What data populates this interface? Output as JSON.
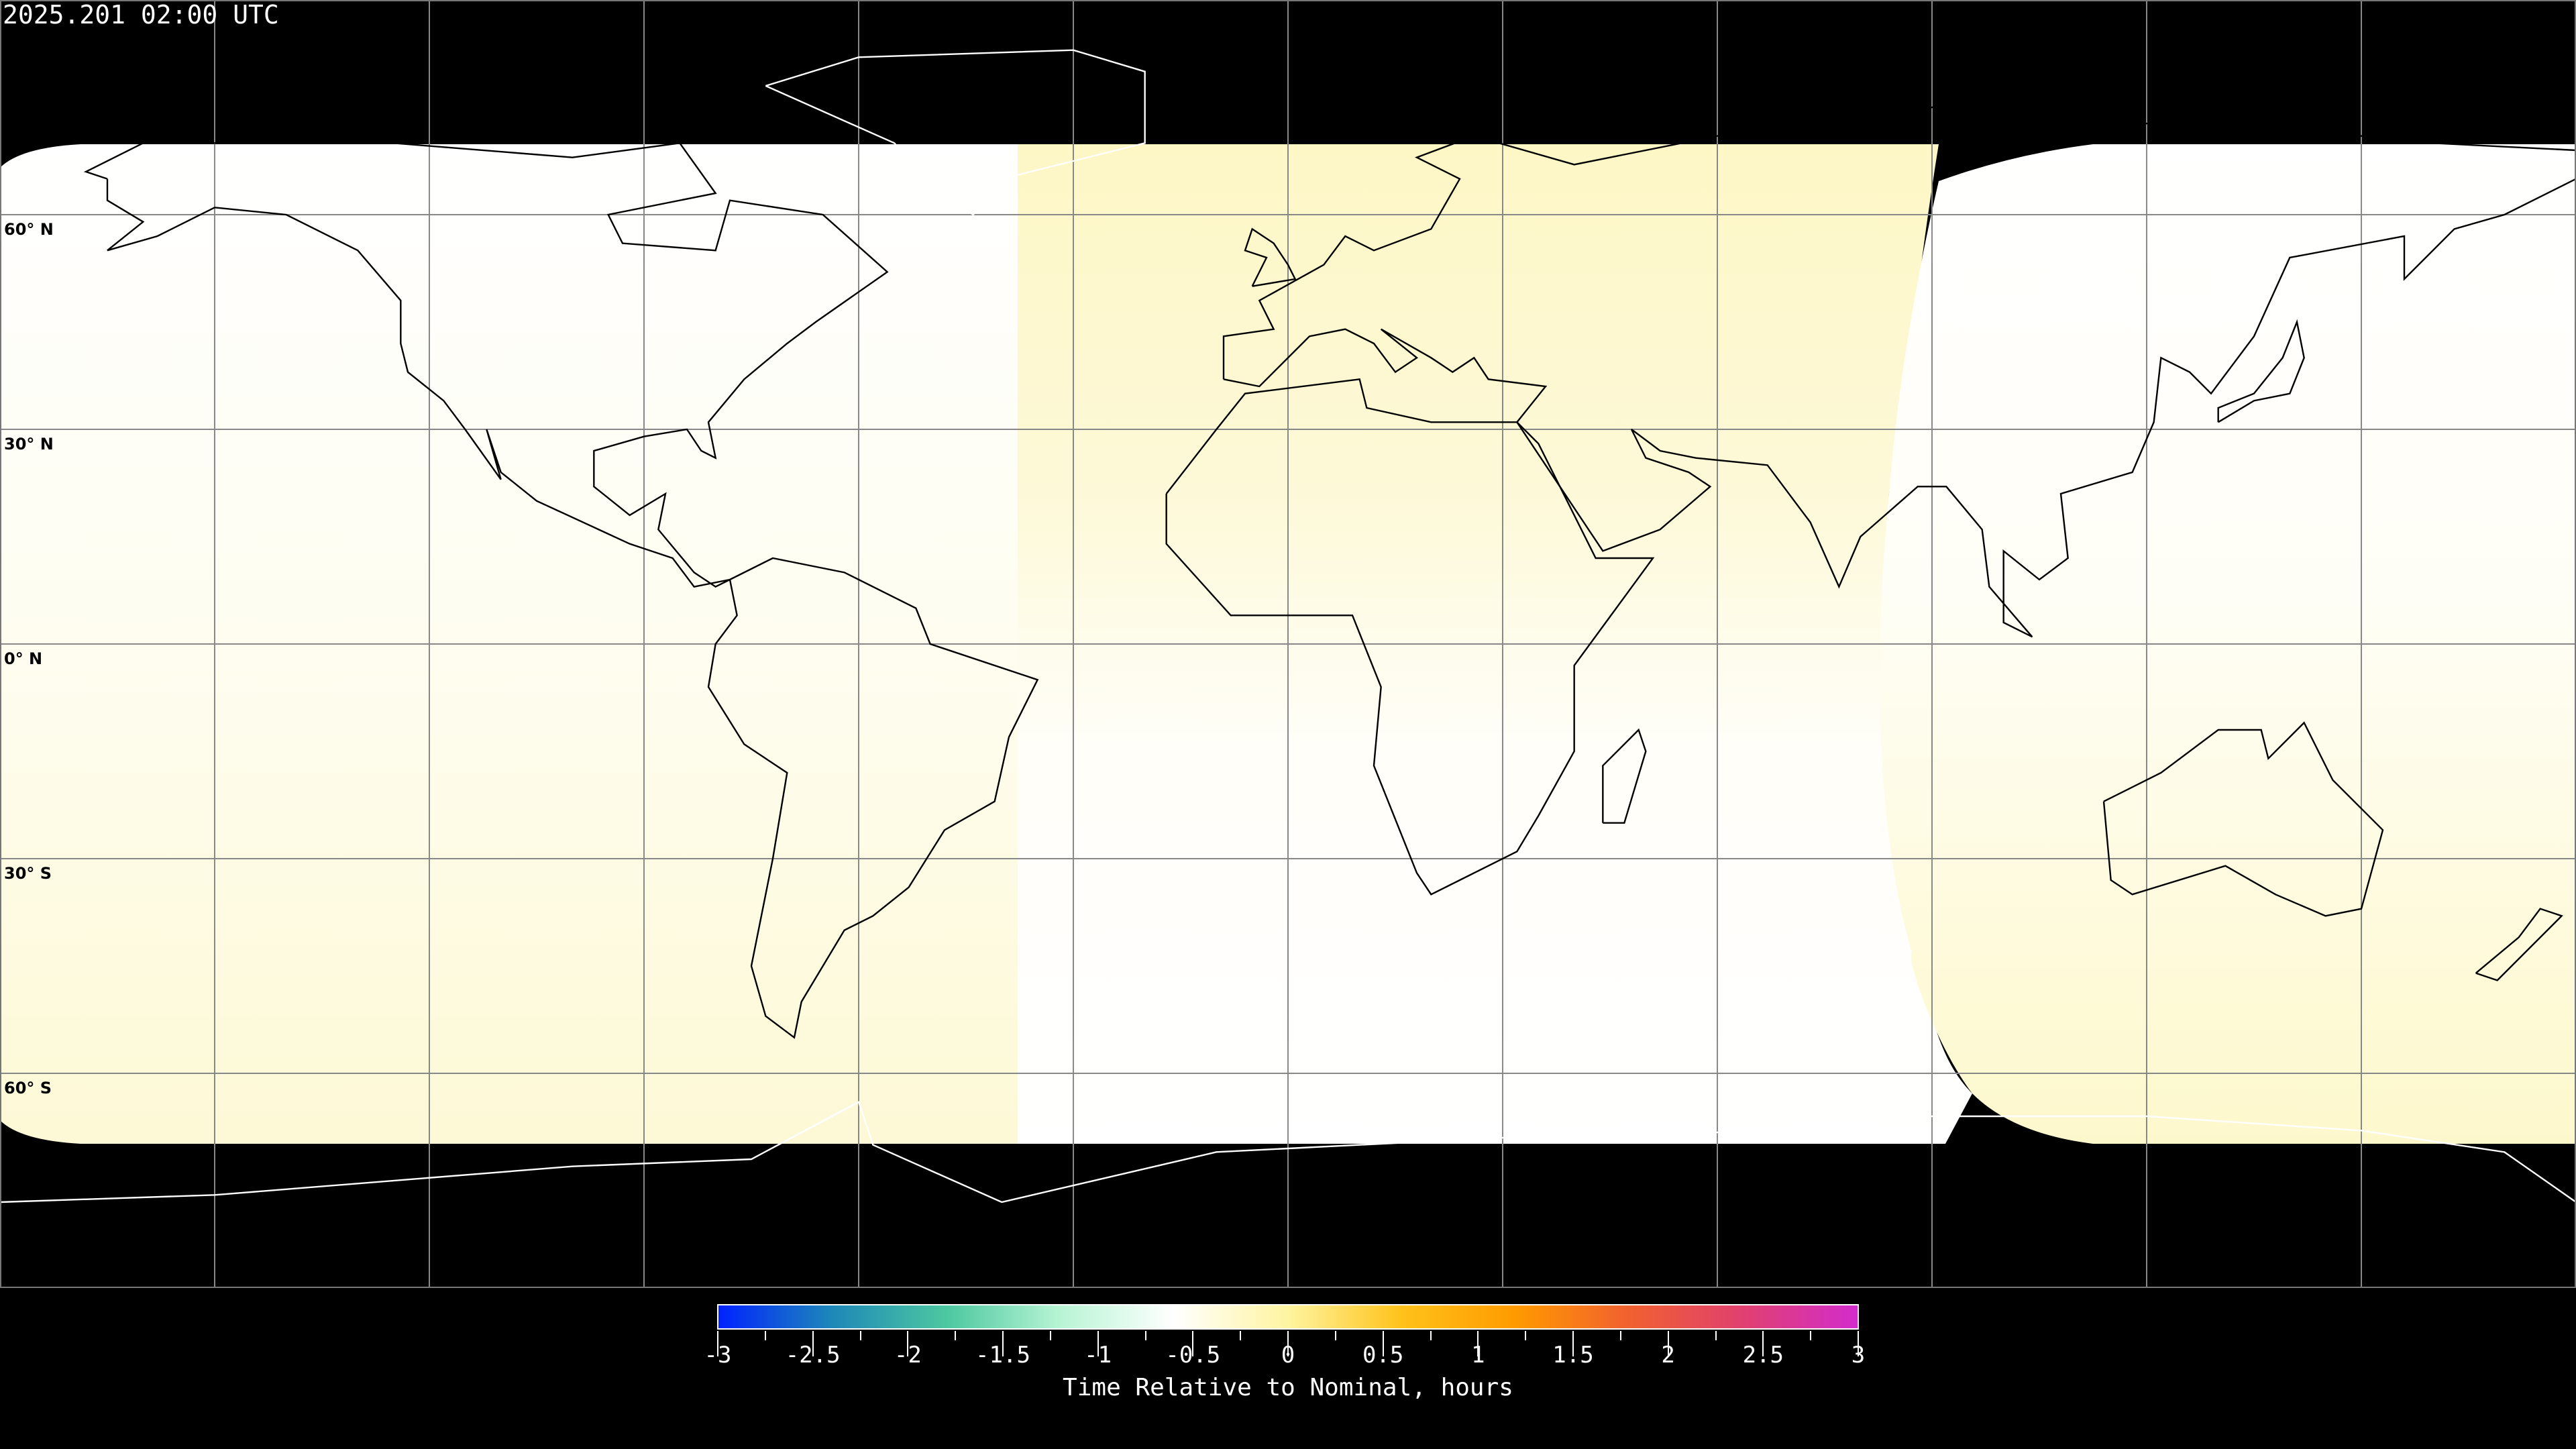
{
  "title": "2025.201 02:00 UTC",
  "map": {
    "projection": "equirectangular",
    "gridline_spacing_degrees": 30,
    "lat_labels": [
      {
        "lat": 60,
        "text": "60° N"
      },
      {
        "lat": 30,
        "text": "30° N"
      },
      {
        "lat": 0,
        "text": "0° N"
      },
      {
        "lat": -30,
        "text": "30° S"
      },
      {
        "lat": -60,
        "text": "60° S"
      }
    ],
    "background_color": "#000000",
    "coastline_color": "#000000",
    "sectors": [
      {
        "lon_range": [
          -180,
          -37
        ],
        "value_range_hours": [
          0,
          0.15
        ]
      },
      {
        "lon_range": [
          -37,
          91
        ],
        "value_range_hours": [
          0,
          0.25
        ]
      },
      {
        "lon_range": [
          91,
          180
        ],
        "value_range_hours": [
          0,
          0.2
        ]
      }
    ]
  },
  "colorbar": {
    "min": -3,
    "max": 3,
    "colors": [
      "#0022ff",
      "#1e88b8",
      "#4cc8a0",
      "#b8f4d4",
      "#ffffff",
      "#fff4a0",
      "#ffc21a",
      "#ff9a00",
      "#f06030",
      "#e04070",
      "#d22ccc"
    ],
    "tick_labels": [
      "-3",
      "-2.5",
      "-2",
      "-1.5",
      "-1",
      "-0.5",
      "0",
      "0.5",
      "1",
      "1.5",
      "2",
      "2.5",
      "3"
    ],
    "label": "Time Relative to Nominal, hours"
  }
}
